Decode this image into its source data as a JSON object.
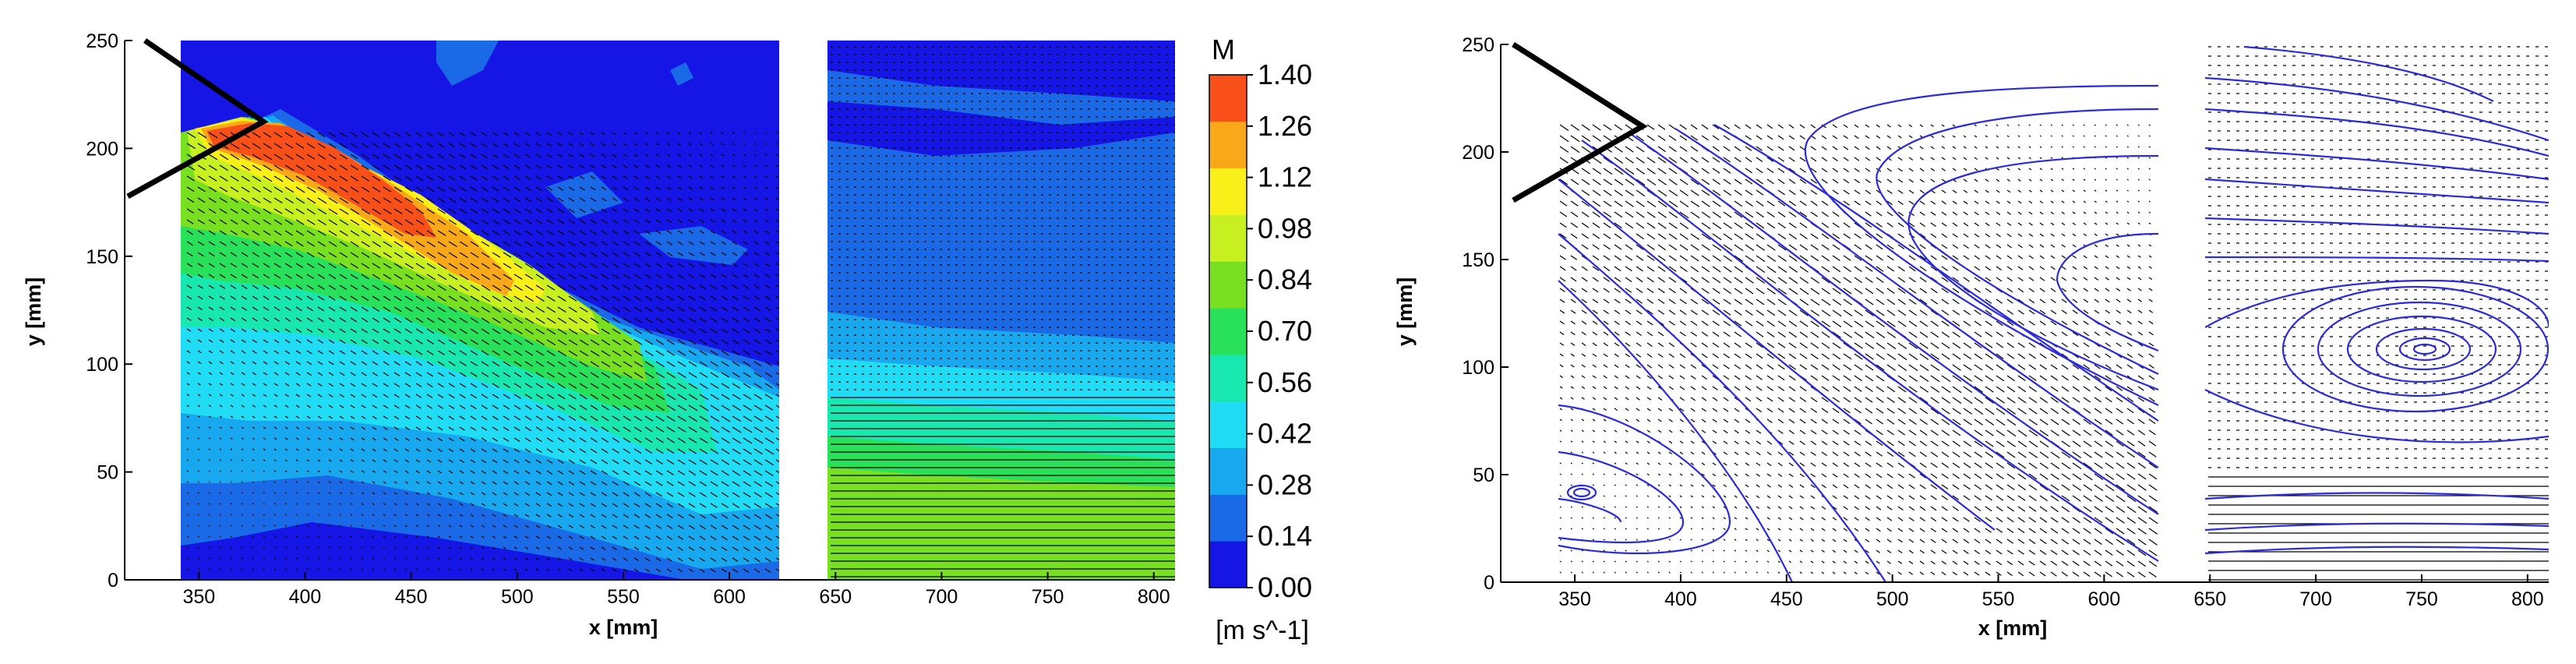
{
  "chart_data": [
    {
      "type": "heatmap",
      "title": "",
      "xlabel": "x [mm]",
      "ylabel": "y [mm]",
      "xlim": [
        315,
        810
      ],
      "ylim": [
        0,
        250
      ],
      "x_ticks": [
        "350",
        "400",
        "450",
        "500",
        "550",
        "600",
        "650",
        "700",
        "750",
        "800"
      ],
      "y_ticks": [
        "0",
        "50",
        "100",
        "150",
        "200",
        "250"
      ],
      "data_regions_x": [
        [
          343,
          620
        ],
        [
          643,
          805
        ]
      ],
      "wedge": [
        [
          315,
          255
        ],
        [
          382,
          213
        ],
        [
          315,
          178
        ]
      ],
      "colorbar": {
        "label": "M",
        "unit": "[m s^-1]",
        "levels": [
          "0.00",
          "0.14",
          "0.28",
          "0.42",
          "0.56",
          "0.70",
          "0.84",
          "0.98",
          "1.12",
          "1.26",
          "1.40"
        ],
        "colors": [
          "#1515e6",
          "#1a6ae8",
          "#18a8f0",
          "#20dcf5",
          "#18e8b0",
          "#28e05a",
          "#78e020",
          "#c8f020",
          "#f8f018",
          "#f8a818",
          "#f85018"
        ]
      },
      "jet_core": {
        "x": [
          382,
          430,
          500,
          560
        ],
        "y": [
          213,
          170,
          130,
          95
        ],
        "max_level": 1.4
      },
      "vectors": "quiver overlay of local velocity direction"
    },
    {
      "type": "scatter",
      "title": "",
      "xlabel": "x [mm]",
      "ylabel": "y [mm]",
      "xlim": [
        315,
        810
      ],
      "ylim": [
        0,
        250
      ],
      "x_ticks": [
        "350",
        "400",
        "450",
        "500",
        "550",
        "600",
        "650",
        "700",
        "750",
        "800"
      ],
      "y_ticks": [
        "0",
        "50",
        "100",
        "150",
        "200",
        "250"
      ],
      "data_regions_x": [
        [
          343,
          622
        ],
        [
          645,
          805
        ]
      ],
      "wedge": [
        [
          315,
          255
        ],
        [
          382,
          213
        ],
        [
          315,
          178
        ]
      ],
      "streamline_color": "#2b2bdc",
      "vortex_centers": [
        [
          352,
          42
        ],
        [
          755,
          108
        ]
      ],
      "vectors": "quiver overlay with streamlines"
    }
  ]
}
